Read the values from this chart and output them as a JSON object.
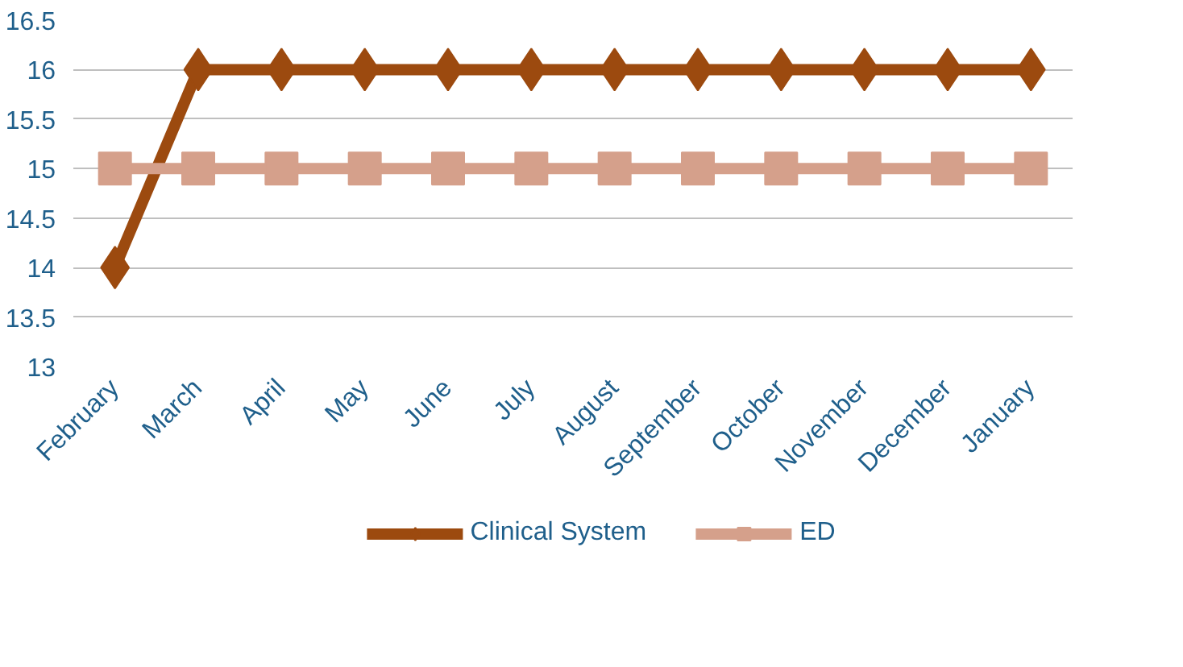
{
  "chart_data": {
    "type": "line",
    "categories": [
      "February",
      "March",
      "April",
      "May",
      "June",
      "July",
      "August",
      "September",
      "October",
      "November",
      "December",
      "January"
    ],
    "series": [
      {
        "name": "Clinical System",
        "color": "#9c4a0f",
        "marker": "diamond",
        "values": [
          14,
          16,
          16,
          16,
          16,
          16,
          16,
          16,
          16,
          16,
          16,
          16
        ]
      },
      {
        "name": "ED",
        "color": "#d5a08b",
        "marker": "square",
        "values": [
          15,
          15,
          15,
          15,
          15,
          15,
          15,
          15,
          15,
          15,
          15,
          15
        ]
      }
    ],
    "ylim": [
      13,
      16.5
    ],
    "yticks": [
      13,
      13.5,
      14,
      14.5,
      15,
      15.5,
      16,
      16.5
    ],
    "grid": "y",
    "legend": "bottom"
  }
}
